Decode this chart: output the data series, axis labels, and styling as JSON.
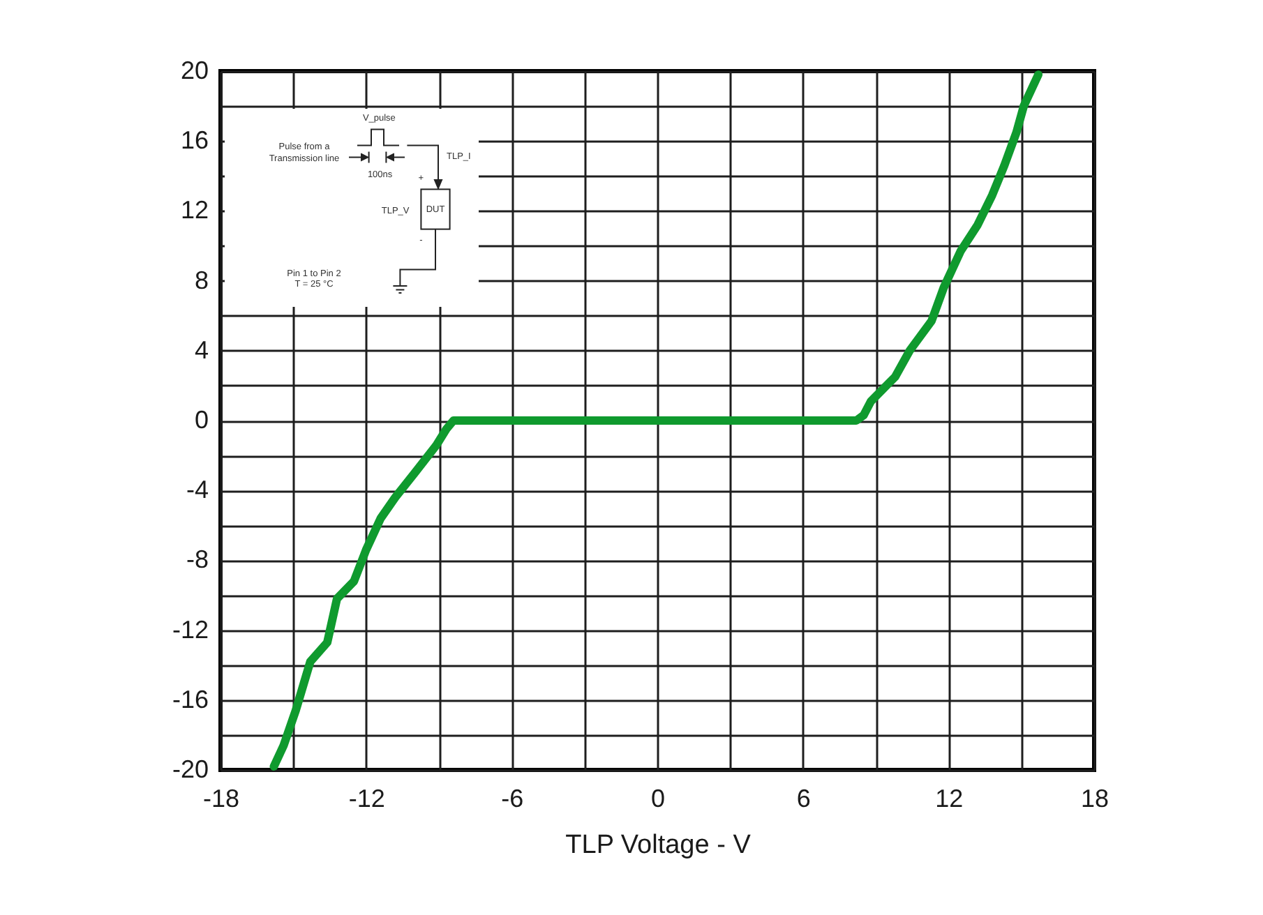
{
  "chart_data": {
    "type": "line",
    "xlabel": "TLP Voltage - V",
    "x": [
      -15.8,
      -15.4,
      -14.9,
      -14.3,
      -13.6,
      -13.2,
      -12.5,
      -12.0,
      -11.4,
      -10.8,
      -10.0,
      -9.1,
      -8.7,
      -8.4,
      -6,
      -3,
      0,
      3,
      6,
      8.2,
      8.5,
      8.8,
      9.8,
      10.4,
      11.3,
      11.8,
      12.5,
      13.2,
      13.8,
      14.3,
      14.8,
      15.1,
      15.7
    ],
    "series": [
      {
        "color": "#0f9a2e",
        "values": [
          -19.8,
          -18.6,
          -16.6,
          -13.8,
          -12.7,
          -10.2,
          -9.2,
          -7.4,
          -5.6,
          -4.4,
          -3.0,
          -1.4,
          -0.5,
          0,
          0,
          0,
          0,
          0,
          0,
          0,
          0.3,
          1.1,
          2.5,
          4.0,
          5.7,
          7.6,
          9.7,
          11.2,
          12.9,
          14.6,
          16.5,
          18.0,
          19.8
        ]
      }
    ],
    "xlim": [
      -18,
      18
    ],
    "ylim": [
      -20,
      20
    ],
    "xticks": [
      -18,
      {
        "value": -15,
        "label": null
      },
      -12,
      {
        "value": -9,
        "label": null
      },
      -6,
      {
        "value": -3,
        "label": null
      },
      0,
      {
        "value": 3,
        "label": null
      },
      6,
      {
        "value": 9,
        "label": null
      },
      12,
      {
        "value": 15,
        "label": null
      },
      18
    ],
    "yticks": [
      -20,
      {
        "value": -18,
        "label": null
      },
      -16,
      {
        "value": -14,
        "label": null
      },
      -12,
      {
        "value": -10,
        "label": null
      },
      -8,
      {
        "value": -6,
        "label": null
      },
      -4,
      {
        "value": -2,
        "label": null
      },
      0,
      {
        "value": 2,
        "label": null
      },
      4,
      {
        "value": 6,
        "label": null
      },
      8,
      {
        "value": 10,
        "label": null
      },
      12,
      {
        "value": 14,
        "label": null
      },
      16,
      {
        "value": 18,
        "label": null
      },
      20
    ],
    "grid": true,
    "line_style": "solid",
    "annotations": [
      "V_pulse",
      "Pulse from a",
      "Transmission line",
      "100ns",
      "TLP_I",
      "+",
      "TLP_V",
      "DUT",
      "-",
      "Pin 1 to Pin 2",
      "T = 25 °C"
    ]
  }
}
